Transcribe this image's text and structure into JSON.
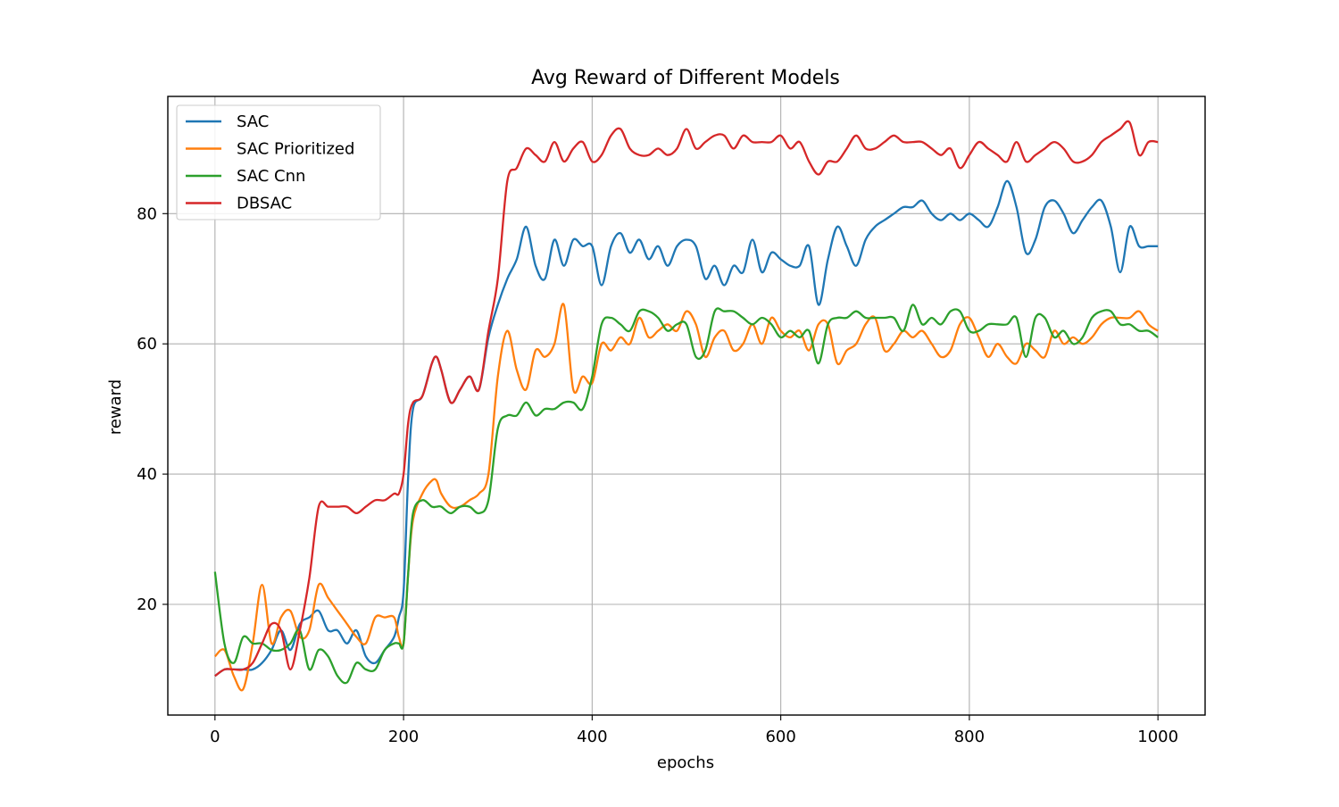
{
  "chart_data": {
    "type": "line",
    "title": "Avg Reward of Different Models",
    "xlabel": "epochs",
    "ylabel": "reward",
    "xlim": [
      -50,
      1050
    ],
    "ylim": [
      3,
      98
    ],
    "xticks": [
      0,
      200,
      400,
      600,
      800,
      1000
    ],
    "yticks": [
      20,
      40,
      60,
      80
    ],
    "grid": true,
    "legend_position": "upper-left",
    "series": [
      {
        "name": "SAC",
        "color": "#1f77b4",
        "x": [
          0,
          10,
          20,
          30,
          40,
          50,
          60,
          70,
          80,
          90,
          100,
          110,
          120,
          130,
          140,
          150,
          160,
          170,
          180,
          190,
          195,
          200,
          205,
          210,
          220,
          230,
          235,
          240,
          250,
          260,
          270,
          280,
          290,
          300,
          310,
          320,
          330,
          340,
          350,
          360,
          370,
          380,
          390,
          400,
          410,
          420,
          430,
          440,
          450,
          460,
          470,
          480,
          490,
          500,
          510,
          520,
          530,
          540,
          550,
          560,
          570,
          580,
          590,
          600,
          610,
          620,
          630,
          640,
          650,
          660,
          670,
          680,
          690,
          700,
          710,
          720,
          730,
          740,
          750,
          760,
          770,
          780,
          790,
          800,
          810,
          820,
          830,
          840,
          850,
          860,
          870,
          880,
          890,
          900,
          910,
          920,
          930,
          940,
          950,
          960,
          970,
          980,
          990,
          1000
        ],
        "y": [
          9,
          10,
          10,
          10,
          10,
          11,
          13,
          16,
          13,
          17,
          18,
          19,
          16,
          16,
          14,
          16,
          12,
          11,
          13,
          15,
          18,
          22,
          40,
          50,
          52,
          57,
          58,
          56,
          51,
          53,
          55,
          53,
          61,
          66,
          70,
          73,
          78,
          72,
          70,
          76,
          72,
          76,
          75,
          75,
          69,
          75,
          77,
          74,
          76,
          73,
          75,
          72,
          75,
          76,
          75,
          70,
          72,
          69,
          72,
          71,
          76,
          71,
          74,
          73,
          72,
          72,
          75,
          66,
          73,
          78,
          75,
          72,
          76,
          78,
          79,
          80,
          81,
          81,
          82,
          80,
          79,
          80,
          79,
          80,
          79,
          78,
          81,
          85,
          81,
          74,
          76,
          81,
          82,
          80,
          77,
          79,
          81,
          82,
          78,
          71,
          78,
          75,
          75,
          75
        ]
      },
      {
        "name": "SAC Prioritized",
        "color": "#ff7f0e",
        "x": [
          0,
          10,
          20,
          30,
          40,
          50,
          60,
          70,
          80,
          90,
          100,
          110,
          120,
          130,
          140,
          150,
          160,
          170,
          180,
          190,
          195,
          200,
          205,
          210,
          220,
          230,
          235,
          240,
          250,
          260,
          270,
          280,
          290,
          300,
          310,
          320,
          330,
          340,
          350,
          360,
          370,
          380,
          390,
          400,
          410,
          420,
          430,
          440,
          450,
          460,
          470,
          480,
          490,
          500,
          510,
          520,
          530,
          540,
          550,
          560,
          570,
          580,
          590,
          600,
          610,
          620,
          630,
          640,
          650,
          660,
          670,
          680,
          690,
          700,
          710,
          720,
          730,
          740,
          750,
          760,
          770,
          780,
          790,
          800,
          810,
          820,
          830,
          840,
          850,
          860,
          870,
          880,
          890,
          900,
          910,
          920,
          930,
          940,
          950,
          960,
          970,
          980,
          990,
          1000
        ],
        "y": [
          12,
          13,
          9,
          7,
          14,
          23,
          14,
          18,
          19,
          15,
          16,
          23,
          21,
          19,
          17,
          15,
          14,
          18,
          18,
          18,
          15,
          14,
          25,
          33,
          37,
          39,
          39,
          37,
          35,
          35,
          36,
          37,
          40,
          55,
          62,
          56,
          53,
          59,
          58,
          60,
          66,
          53,
          55,
          54,
          60,
          59,
          61,
          60,
          64,
          61,
          62,
          63,
          62,
          65,
          63,
          58,
          61,
          62,
          59,
          60,
          63,
          60,
          64,
          62,
          61,
          62,
          59,
          63,
          63,
          57,
          59,
          60,
          63,
          64,
          59,
          60,
          62,
          61,
          62,
          60,
          58,
          59,
          63,
          64,
          61,
          58,
          60,
          58,
          57,
          60,
          59,
          58,
          62,
          60,
          61,
          60,
          61,
          63,
          64,
          64,
          64,
          65,
          63,
          62
        ]
      },
      {
        "name": "SAC Cnn",
        "color": "#2ca02c",
        "x": [
          0,
          10,
          20,
          30,
          40,
          50,
          60,
          70,
          80,
          90,
          100,
          110,
          120,
          130,
          140,
          150,
          160,
          170,
          180,
          190,
          195,
          200,
          205,
          210,
          220,
          230,
          235,
          240,
          250,
          260,
          270,
          280,
          290,
          300,
          310,
          320,
          330,
          340,
          350,
          360,
          370,
          380,
          390,
          400,
          410,
          420,
          430,
          440,
          450,
          460,
          470,
          480,
          490,
          500,
          510,
          520,
          530,
          540,
          550,
          560,
          570,
          580,
          590,
          600,
          610,
          620,
          630,
          640,
          650,
          660,
          670,
          680,
          690,
          700,
          710,
          720,
          730,
          740,
          750,
          760,
          770,
          780,
          790,
          800,
          810,
          820,
          830,
          840,
          850,
          860,
          870,
          880,
          890,
          900,
          910,
          920,
          930,
          940,
          950,
          960,
          970,
          980,
          990,
          1000
        ],
        "y": [
          25,
          14,
          11,
          15,
          14,
          14,
          13,
          13,
          14,
          16,
          10,
          13,
          12,
          9,
          8,
          11,
          10,
          10,
          13,
          14,
          14,
          14,
          25,
          34,
          36,
          35,
          35,
          35,
          34,
          35,
          35,
          34,
          36,
          47,
          49,
          49,
          51,
          49,
          50,
          50,
          51,
          51,
          50,
          55,
          63,
          64,
          63,
          62,
          65,
          65,
          64,
          62,
          63,
          63,
          58,
          59,
          65,
          65,
          65,
          64,
          63,
          64,
          63,
          61,
          62,
          61,
          62,
          57,
          63,
          64,
          64,
          65,
          64,
          64,
          64,
          64,
          62,
          66,
          63,
          64,
          63,
          65,
          65,
          62,
          62,
          63,
          63,
          63,
          64,
          58,
          64,
          64,
          61,
          62,
          60,
          61,
          64,
          65,
          65,
          63,
          63,
          62,
          62,
          61
        ]
      },
      {
        "name": "DBSAC",
        "color": "#d62728",
        "x": [
          0,
          10,
          20,
          30,
          40,
          50,
          60,
          70,
          80,
          90,
          100,
          110,
          120,
          130,
          140,
          150,
          160,
          170,
          180,
          190,
          195,
          200,
          205,
          210,
          220,
          230,
          235,
          240,
          250,
          260,
          270,
          280,
          290,
          300,
          310,
          320,
          330,
          340,
          350,
          360,
          370,
          380,
          390,
          400,
          410,
          420,
          430,
          440,
          450,
          460,
          470,
          480,
          490,
          500,
          510,
          520,
          530,
          540,
          550,
          560,
          570,
          580,
          590,
          600,
          610,
          620,
          630,
          640,
          650,
          660,
          670,
          680,
          690,
          700,
          710,
          720,
          730,
          740,
          750,
          760,
          770,
          780,
          790,
          800,
          810,
          820,
          830,
          840,
          850,
          860,
          870,
          880,
          890,
          900,
          910,
          920,
          930,
          940,
          950,
          960,
          970,
          980,
          990,
          1000
        ],
        "y": [
          9,
          10,
          10,
          10,
          11,
          14,
          17,
          16,
          10,
          16,
          24,
          35,
          35,
          35,
          35,
          34,
          35,
          36,
          36,
          37,
          37,
          40,
          48,
          51,
          52,
          57,
          58,
          56,
          51,
          53,
          55,
          53,
          62,
          70,
          85,
          87,
          90,
          89,
          88,
          91,
          88,
          90,
          91,
          88,
          89,
          92,
          93,
          90,
          89,
          89,
          90,
          89,
          90,
          93,
          90,
          91,
          92,
          92,
          90,
          92,
          91,
          91,
          91,
          92,
          90,
          91,
          88,
          86,
          88,
          88,
          90,
          92,
          90,
          90,
          91,
          92,
          91,
          91,
          91,
          90,
          89,
          90,
          87,
          89,
          91,
          90,
          89,
          88,
          91,
          88,
          89,
          90,
          91,
          90,
          88,
          88,
          89,
          91,
          92,
          93,
          94,
          89,
          91,
          91
        ]
      }
    ]
  }
}
